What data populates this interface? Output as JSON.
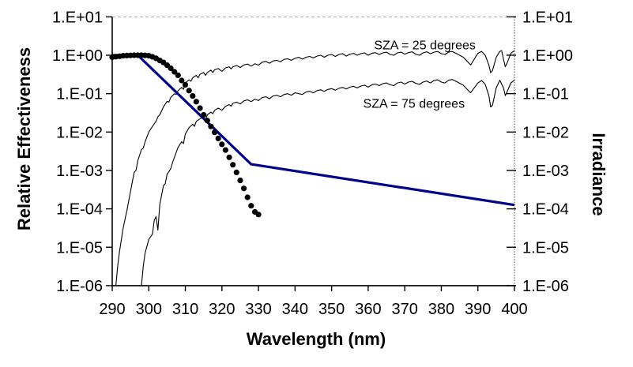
{
  "page": {
    "background": "#ffffff"
  },
  "chart_data": {
    "type": "line",
    "title": "",
    "xlabel": "Wavelength (nm)",
    "ylabel_left": "Relative Effectiveness",
    "ylabel_right": "Irradiance",
    "grid": {
      "top_gridline": true,
      "top_gridline_style": "dashed-light-gray"
    },
    "x_axis": {
      "min": 290,
      "max": 400,
      "tick_step": 10,
      "tick_labels": [
        "290",
        "300",
        "310",
        "320",
        "330",
        "340",
        "350",
        "360",
        "370",
        "380",
        "390",
        "400"
      ]
    },
    "y_axis_left": {
      "scale": "log10",
      "min": 1e-06,
      "max": 10,
      "tick_labels": [
        "1.E+01",
        "1.E+00",
        "1.E-01",
        "1.E-02",
        "1.E-03",
        "1.E-04",
        "1.E-05",
        "1.E-06"
      ]
    },
    "y_axis_right": {
      "scale": "log10",
      "min": 1e-06,
      "max": 10,
      "tick_labels": [
        "1.E+01",
        "1.E+00",
        "1.E-01",
        "1.E-02",
        "1.E-03",
        "1.E-04",
        "1.E-05",
        "1.E-06"
      ]
    },
    "colors": {
      "action_spectrum_line": "#00008B",
      "curves": "#000000",
      "gridline": "#b3b3b3"
    },
    "annotations": [
      {
        "text": "SZA = 25 degrees",
        "x_nm": 375.5,
        "value": 1.86
      },
      {
        "text": "SZA = 75 degrees",
        "x_nm": 372.5,
        "value": 0.056
      }
    ],
    "series": [
      {
        "id": "relative-effectiveness-markers",
        "axis": "left",
        "style": "filled-circle-markers",
        "color": "#000000",
        "points": [
          [
            290,
            0.89
          ],
          [
            291,
            0.92
          ],
          [
            292,
            0.94
          ],
          [
            293,
            0.97
          ],
          [
            294,
            0.98
          ],
          [
            295,
            0.99
          ],
          [
            296,
            1.0
          ],
          [
            297,
            1.0
          ],
          [
            298,
            1.0
          ],
          [
            299,
            0.99
          ],
          [
            300,
            0.97
          ],
          [
            301,
            0.91
          ],
          [
            302,
            0.83
          ],
          [
            303,
            0.73
          ],
          [
            304,
            0.65
          ],
          [
            305,
            0.55
          ],
          [
            306,
            0.46
          ],
          [
            307,
            0.37
          ],
          [
            308,
            0.3
          ],
          [
            309,
            0.22
          ],
          [
            310,
            0.17
          ],
          [
            311,
            0.12
          ],
          [
            312,
            0.087
          ],
          [
            313,
            0.062
          ],
          [
            314,
            0.042
          ],
          [
            315,
            0.028
          ],
          [
            316,
            0.02
          ],
          [
            317,
            0.014
          ],
          [
            318,
            0.0098
          ],
          [
            319,
            0.0068
          ],
          [
            320,
            0.0048
          ],
          [
            321,
            0.0034
          ],
          [
            322,
            0.0022
          ],
          [
            323,
            0.0014
          ],
          [
            324,
            0.00089
          ],
          [
            325,
            0.00055
          ],
          [
            326,
            0.00034
          ],
          [
            327,
            0.0002
          ],
          [
            328,
            0.00012
          ],
          [
            329,
            8.3e-05
          ],
          [
            330,
            7.1e-05
          ]
        ]
      },
      {
        "id": "action-spectrum-blue-line",
        "axis": "left",
        "style": "thick-line",
        "color": "#00008B",
        "points": [
          [
            290,
            1.0
          ],
          [
            297,
            1.0
          ],
          [
            328,
            0.00145
          ],
          [
            400,
            0.000126
          ]
        ]
      },
      {
        "id": "irradiance-sza-25",
        "label": "SZA = 25 degrees",
        "axis": "right",
        "style": "thin-line",
        "color": "#000000",
        "points": [
          [
            291,
            1e-06
          ],
          [
            291.5,
            3.2e-06
          ],
          [
            292,
            7.9e-06
          ],
          [
            293,
            3.2e-05
          ],
          [
            294,
            8.9e-05
          ],
          [
            295,
            0.00028
          ],
          [
            295.5,
            0.0005
          ],
          [
            296,
            0.00089
          ],
          [
            296.5,
            0.001
          ],
          [
            297,
            0.0018
          ],
          [
            298,
            0.0035
          ],
          [
            298.5,
            0.0038
          ],
          [
            299,
            0.0056
          ],
          [
            300,
            0.01
          ],
          [
            301,
            0.014
          ],
          [
            302,
            0.019
          ],
          [
            302.5,
            0.025
          ],
          [
            303,
            0.028
          ],
          [
            304,
            0.045
          ],
          [
            305,
            0.063
          ],
          [
            305.5,
            0.06
          ],
          [
            306,
            0.079
          ],
          [
            307,
            0.1
          ],
          [
            307.5,
            0.095
          ],
          [
            308,
            0.12
          ],
          [
            309,
            0.145
          ],
          [
            309.5,
            0.13
          ],
          [
            310,
            0.19
          ],
          [
            311,
            0.23
          ],
          [
            311.5,
            0.21
          ],
          [
            312,
            0.26
          ],
          [
            313,
            0.3
          ],
          [
            313.5,
            0.26
          ],
          [
            314,
            0.32
          ],
          [
            315,
            0.355
          ],
          [
            315.5,
            0.3
          ],
          [
            316,
            0.355
          ],
          [
            317,
            0.41
          ],
          [
            317.5,
            0.355
          ],
          [
            318,
            0.42
          ],
          [
            319,
            0.45
          ],
          [
            320,
            0.38
          ],
          [
            321,
            0.47
          ],
          [
            322,
            0.5
          ],
          [
            322.5,
            0.44
          ],
          [
            323,
            0.5
          ],
          [
            324,
            0.54
          ],
          [
            325,
            0.48
          ],
          [
            326,
            0.56
          ],
          [
            327,
            0.59
          ],
          [
            328,
            0.52
          ],
          [
            329,
            0.6
          ],
          [
            330,
            0.55
          ],
          [
            331,
            0.66
          ],
          [
            332,
            0.69
          ],
          [
            333,
            0.62
          ],
          [
            334,
            0.71
          ],
          [
            335,
            0.74
          ],
          [
            336,
            0.68
          ],
          [
            337,
            0.78
          ],
          [
            338,
            0.81
          ],
          [
            339,
            0.74
          ],
          [
            340,
            0.83
          ],
          [
            341,
            0.89
          ],
          [
            342,
            0.79
          ],
          [
            343,
            0.89
          ],
          [
            344,
            0.93
          ],
          [
            345,
            0.85
          ],
          [
            346,
            0.95
          ],
          [
            347,
            1.0
          ],
          [
            348,
            0.89
          ],
          [
            349,
            1.0
          ],
          [
            350,
            1.05
          ],
          [
            351,
            0.93
          ],
          [
            352,
            1.05
          ],
          [
            353,
            1.1
          ],
          [
            354,
            0.95
          ],
          [
            355,
            1.07
          ],
          [
            356,
            1.12
          ],
          [
            357,
            1.0
          ],
          [
            358,
            1.1
          ],
          [
            359,
            1.15
          ],
          [
            360,
            1.0
          ],
          [
            361,
            1.12
          ],
          [
            362,
            1.17
          ],
          [
            363,
            1.05
          ],
          [
            364,
            1.15
          ],
          [
            365,
            1.2
          ],
          [
            366,
            1.05
          ],
          [
            367,
            1.0
          ],
          [
            368,
            1.15
          ],
          [
            369,
            1.2
          ],
          [
            370,
            1.07
          ],
          [
            371,
            1.17
          ],
          [
            372,
            1.23
          ],
          [
            373,
            1.07
          ],
          [
            374,
            1.0
          ],
          [
            375,
            1.15
          ],
          [
            376,
            1.23
          ],
          [
            377,
            1.1
          ],
          [
            378,
            1.2
          ],
          [
            379,
            1.26
          ],
          [
            380,
            1.1
          ],
          [
            381,
            1.05
          ],
          [
            382,
            1.2
          ],
          [
            383,
            1.26
          ],
          [
            384,
            1.12
          ],
          [
            385,
            1.0
          ],
          [
            386,
            0.89
          ],
          [
            387,
            0.71
          ],
          [
            388,
            0.56
          ],
          [
            389,
            0.79
          ],
          [
            390,
            1.12
          ],
          [
            391,
            1.26
          ],
          [
            392,
            1.0
          ],
          [
            393,
            0.56
          ],
          [
            393.5,
            0.35
          ],
          [
            394,
            0.4
          ],
          [
            395,
            0.89
          ],
          [
            396,
            1.26
          ],
          [
            396.5,
            1.32
          ],
          [
            397,
            0.79
          ],
          [
            397.5,
            0.5
          ],
          [
            398,
            0.63
          ],
          [
            399,
            1.12
          ],
          [
            400,
            1.32
          ]
        ]
      },
      {
        "id": "irradiance-sza-75",
        "label": "SZA = 75 degrees",
        "axis": "right",
        "style": "thin-line",
        "color": "#000000",
        "points": [
          [
            298,
            1e-06
          ],
          [
            298.5,
            3.2e-06
          ],
          [
            299,
            7.1e-06
          ],
          [
            300,
            1.6e-05
          ],
          [
            301,
            2.2e-05
          ],
          [
            301.5,
            5e-05
          ],
          [
            302,
            6.3e-05
          ],
          [
            302.5,
            2.8e-05
          ],
          [
            303,
            0.00013
          ],
          [
            304,
            0.0004
          ],
          [
            304.5,
            0.00045
          ],
          [
            305,
            0.00079
          ],
          [
            306,
            0.0011
          ],
          [
            306.5,
            0.0016
          ],
          [
            307,
            0.0022
          ],
          [
            308,
            0.004
          ],
          [
            309,
            0.0056
          ],
          [
            309.5,
            0.005
          ],
          [
            310,
            0.0089
          ],
          [
            311,
            0.013
          ],
          [
            312,
            0.016
          ],
          [
            312.5,
            0.014
          ],
          [
            313,
            0.019
          ],
          [
            314,
            0.022
          ],
          [
            315,
            0.025
          ],
          [
            315.5,
            0.021
          ],
          [
            316,
            0.028
          ],
          [
            317,
            0.033
          ],
          [
            317.5,
            0.03
          ],
          [
            318,
            0.037
          ],
          [
            319,
            0.042
          ],
          [
            320,
            0.037
          ],
          [
            321,
            0.047
          ],
          [
            322,
            0.052
          ],
          [
            322.5,
            0.047
          ],
          [
            323,
            0.056
          ],
          [
            324,
            0.06
          ],
          [
            325,
            0.054
          ],
          [
            326,
            0.065
          ],
          [
            327,
            0.069
          ],
          [
            328,
            0.062
          ],
          [
            329,
            0.072
          ],
          [
            330,
            0.066
          ],
          [
            331,
            0.079
          ],
          [
            332,
            0.083
          ],
          [
            333,
            0.074
          ],
          [
            334,
            0.087
          ],
          [
            335,
            0.091
          ],
          [
            336,
            0.083
          ],
          [
            337,
            0.095
          ],
          [
            338,
            0.1
          ],
          [
            339,
            0.091
          ],
          [
            340,
            0.105
          ],
          [
            342,
            0.095
          ],
          [
            343,
            0.11
          ],
          [
            344,
            0.115
          ],
          [
            345,
            0.105
          ],
          [
            346,
            0.12
          ],
          [
            347,
            0.126
          ],
          [
            348,
            0.115
          ],
          [
            349,
            0.129
          ],
          [
            350,
            0.135
          ],
          [
            351,
            0.123
          ],
          [
            352,
            0.138
          ],
          [
            353,
            0.145
          ],
          [
            354,
            0.132
          ],
          [
            355,
            0.148
          ],
          [
            356,
            0.155
          ],
          [
            357,
            0.141
          ],
          [
            358,
            0.158
          ],
          [
            359,
            0.166
          ],
          [
            360,
            0.148
          ],
          [
            361,
            0.17
          ],
          [
            362,
            0.178
          ],
          [
            363,
            0.162
          ],
          [
            364,
            0.182
          ],
          [
            365,
            0.19
          ],
          [
            366,
            0.17
          ],
          [
            367,
            0.162
          ],
          [
            368,
            0.19
          ],
          [
            369,
            0.2
          ],
          [
            370,
            0.178
          ],
          [
            371,
            0.2
          ],
          [
            372,
            0.21
          ],
          [
            373,
            0.186
          ],
          [
            374,
            0.174
          ],
          [
            375,
            0.2
          ],
          [
            376,
            0.214
          ],
          [
            377,
            0.19
          ],
          [
            378,
            0.22
          ],
          [
            379,
            0.23
          ],
          [
            380,
            0.2
          ],
          [
            381,
            0.19
          ],
          [
            382,
            0.224
          ],
          [
            383,
            0.234
          ],
          [
            384,
            0.21
          ],
          [
            385,
            0.186
          ],
          [
            386,
            0.166
          ],
          [
            387,
            0.132
          ],
          [
            388,
            0.105
          ],
          [
            389,
            0.141
          ],
          [
            390,
            0.19
          ],
          [
            391,
            0.22
          ],
          [
            392,
            0.174
          ],
          [
            393,
            0.089
          ],
          [
            393.5,
            0.045
          ],
          [
            394,
            0.05
          ],
          [
            395,
            0.141
          ],
          [
            396,
            0.224
          ],
          [
            397,
            0.141
          ],
          [
            397.5,
            0.089
          ],
          [
            398,
            0.112
          ],
          [
            399,
            0.19
          ],
          [
            400,
            0.224
          ]
        ]
      }
    ]
  }
}
